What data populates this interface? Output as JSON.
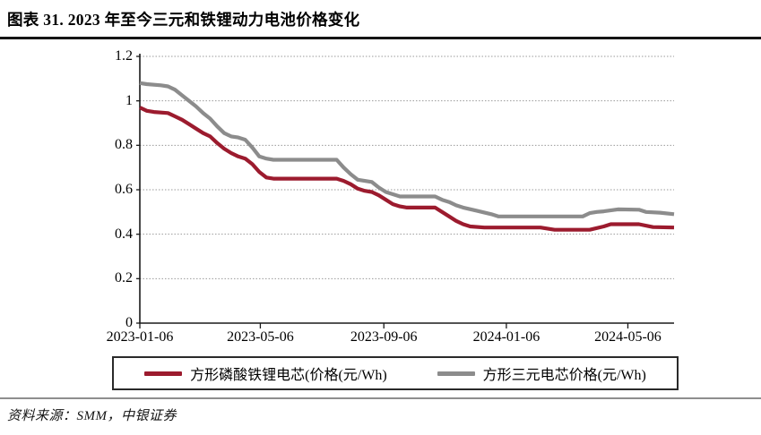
{
  "header": {
    "title": "图表 31. 2023 年至今三元和铁锂动力电池价格变化"
  },
  "footer": {
    "source": "资料来源：SMM，中银证券"
  },
  "chart_data": {
    "type": "line",
    "title": "图表 31. 2023 年至今三元和铁锂动力电池价格变化",
    "xlabel": "",
    "ylabel": "",
    "unit": "元/Wh",
    "grid": "horizontal-dotted",
    "legend_position": "bottom-boxed",
    "x_axis": {
      "start": "2023-01-06",
      "end": "2024-06-21",
      "ticks": [
        "2023-01-06",
        "2023-05-06",
        "2023-09-06",
        "2024-01-06",
        "2024-05-06"
      ]
    },
    "y_axis": {
      "range": [
        0,
        1.2
      ],
      "ticks": [
        0,
        0.2,
        0.4,
        0.6,
        0.8,
        1,
        1.2
      ],
      "tick_labels": [
        "0",
        "0.2",
        "0.4",
        "0.6",
        "0.8",
        "1",
        "1.2"
      ]
    },
    "series": [
      {
        "name": "方形三元电芯价格(元/Wh)",
        "color": "#8C8C8C",
        "points": [
          [
            "2023-01-06",
            1.08
          ],
          [
            "2023-01-13",
            1.075
          ],
          [
            "2023-01-27",
            1.07
          ],
          [
            "2023-02-03",
            1.065
          ],
          [
            "2023-02-10",
            1.05
          ],
          [
            "2023-02-17",
            1.025
          ],
          [
            "2023-02-24",
            1.0
          ],
          [
            "2023-03-03",
            0.975
          ],
          [
            "2023-03-10",
            0.945
          ],
          [
            "2023-03-17",
            0.92
          ],
          [
            "2023-03-24",
            0.885
          ],
          [
            "2023-03-31",
            0.855
          ],
          [
            "2023-04-07",
            0.84
          ],
          [
            "2023-04-14",
            0.835
          ],
          [
            "2023-04-21",
            0.825
          ],
          [
            "2023-04-28",
            0.79
          ],
          [
            "2023-05-05",
            0.75
          ],
          [
            "2023-05-12",
            0.74
          ],
          [
            "2023-05-19",
            0.735
          ],
          [
            "2023-07-21",
            0.735
          ],
          [
            "2023-07-28",
            0.7
          ],
          [
            "2023-08-04",
            0.67
          ],
          [
            "2023-08-11",
            0.645
          ],
          [
            "2023-08-25",
            0.635
          ],
          [
            "2023-09-01",
            0.61
          ],
          [
            "2023-09-08",
            0.59
          ],
          [
            "2023-09-15",
            0.58
          ],
          [
            "2023-09-22",
            0.57
          ],
          [
            "2023-10-27",
            0.57
          ],
          [
            "2023-11-03",
            0.555
          ],
          [
            "2023-11-10",
            0.545
          ],
          [
            "2023-11-17",
            0.53
          ],
          [
            "2023-11-24",
            0.52
          ],
          [
            "2023-12-08",
            0.505
          ],
          [
            "2023-12-22",
            0.49
          ],
          [
            "2023-12-29",
            0.48
          ],
          [
            "2024-03-22",
            0.48
          ],
          [
            "2024-03-29",
            0.495
          ],
          [
            "2024-04-05",
            0.5
          ],
          [
            "2024-04-12",
            0.503
          ],
          [
            "2024-04-26",
            0.512
          ],
          [
            "2024-05-17",
            0.51
          ],
          [
            "2024-05-24",
            0.5
          ],
          [
            "2024-06-07",
            0.497
          ],
          [
            "2024-06-21",
            0.49
          ]
        ]
      },
      {
        "name": "方形磷酸铁锂电芯(价格(元/Wh)",
        "color": "#9C1B2E",
        "points": [
          [
            "2023-01-06",
            0.97
          ],
          [
            "2023-01-13",
            0.955
          ],
          [
            "2023-01-20",
            0.95
          ],
          [
            "2023-02-03",
            0.945
          ],
          [
            "2023-02-10",
            0.93
          ],
          [
            "2023-02-17",
            0.915
          ],
          [
            "2023-02-24",
            0.895
          ],
          [
            "2023-03-03",
            0.875
          ],
          [
            "2023-03-10",
            0.855
          ],
          [
            "2023-03-17",
            0.84
          ],
          [
            "2023-03-24",
            0.81
          ],
          [
            "2023-03-31",
            0.785
          ],
          [
            "2023-04-07",
            0.765
          ],
          [
            "2023-04-14",
            0.75
          ],
          [
            "2023-04-21",
            0.74
          ],
          [
            "2023-04-28",
            0.715
          ],
          [
            "2023-05-05",
            0.68
          ],
          [
            "2023-05-12",
            0.655
          ],
          [
            "2023-05-19",
            0.65
          ],
          [
            "2023-07-21",
            0.65
          ],
          [
            "2023-07-28",
            0.64
          ],
          [
            "2023-08-04",
            0.625
          ],
          [
            "2023-08-11",
            0.605
          ],
          [
            "2023-08-18",
            0.595
          ],
          [
            "2023-08-25",
            0.59
          ],
          [
            "2023-09-01",
            0.575
          ],
          [
            "2023-09-08",
            0.555
          ],
          [
            "2023-09-15",
            0.535
          ],
          [
            "2023-09-22",
            0.525
          ],
          [
            "2023-09-29",
            0.52
          ],
          [
            "2023-10-27",
            0.52
          ],
          [
            "2023-11-03",
            0.5
          ],
          [
            "2023-11-10",
            0.48
          ],
          [
            "2023-11-17",
            0.46
          ],
          [
            "2023-11-24",
            0.445
          ],
          [
            "2023-12-01",
            0.435
          ],
          [
            "2023-12-15",
            0.43
          ],
          [
            "2024-02-09",
            0.43
          ],
          [
            "2024-02-23",
            0.42
          ],
          [
            "2024-03-29",
            0.42
          ],
          [
            "2024-04-12",
            0.435
          ],
          [
            "2024-04-19",
            0.445
          ],
          [
            "2024-05-17",
            0.445
          ],
          [
            "2024-05-31",
            0.432
          ],
          [
            "2024-06-21",
            0.43
          ]
        ]
      }
    ]
  }
}
